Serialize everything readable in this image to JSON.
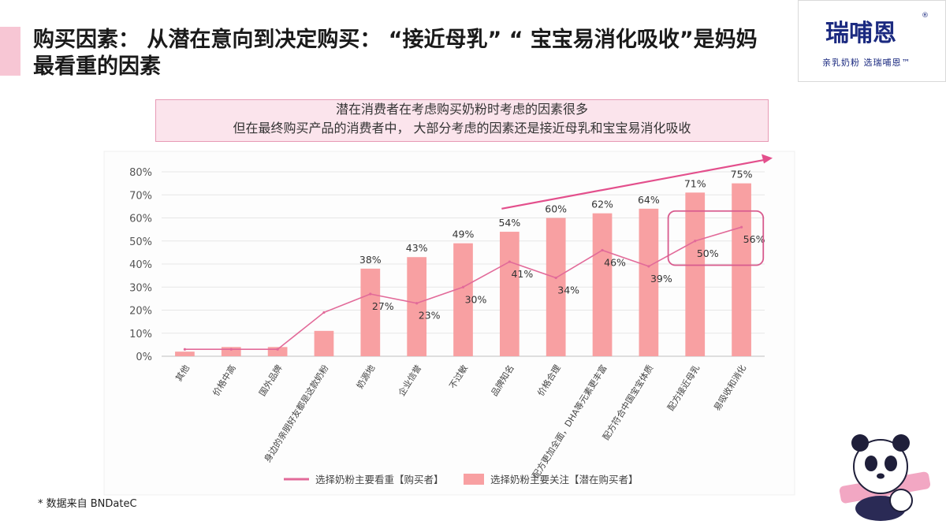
{
  "header": {
    "title": "购买因素： 从潜在意向到决定购买：  “接近母乳”  “ 宝宝易消化吸收”是妈妈最看重的因素"
  },
  "logo": {
    "name": "瑞哺恩",
    "mark": "®",
    "slogan": "亲乳奶粉 选瑞哺恩™",
    "icon": "brand-logo-icon"
  },
  "callout": {
    "line1": "潜在消费者在考虑购买奶粉时考虑的因素很多",
    "line2": "但在最终购买产品的消费者中， 大部分考虑的因素还是接近母乳和宝宝易消化吸收"
  },
  "footnote": {
    "text": "* 数据来自 BNDateC"
  },
  "mascot": {
    "icon": "panda-mascot-icon"
  },
  "colors": {
    "bar": "#f8a0a2",
    "line": "#e26a99",
    "trend": "#e34f8c",
    "highlight": "#d85b8e"
  },
  "chart_data": {
    "type": "bar",
    "categories": [
      "其他",
      "价格中高",
      "国外品牌",
      "身边的亲朋好友都是这款奶粉",
      "奶源地",
      "企业信誉",
      "不过敏",
      "品牌知名",
      "价格合理",
      "配方更加全面，DHA等元素更丰富",
      "配方符合中国宝宝体质",
      "配方接近母乳",
      "易吸收和消化"
    ],
    "ylim": [
      0,
      80
    ],
    "yticks": [
      "0%",
      "10%",
      "20%",
      "30%",
      "40%",
      "50%",
      "60%",
      "70%",
      "80%"
    ],
    "legend_position": "bottom",
    "grid": true,
    "series": [
      {
        "name": "选择奶粉主要看重【购买者】",
        "type": "line",
        "values": [
          3,
          3,
          3,
          19,
          27,
          23,
          30,
          41,
          34,
          46,
          39,
          50,
          56
        ],
        "labels": [
          "",
          "",
          "",
          "",
          "27%",
          "23%",
          "30%",
          "41%",
          "34%",
          "46%",
          "39%",
          "50%",
          "56%"
        ]
      },
      {
        "name": "选择奶粉主要关注【潜在购买者】",
        "type": "bar",
        "values": [
          2,
          4,
          4,
          11,
          38,
          43,
          49,
          54,
          60,
          62,
          64,
          71,
          75
        ],
        "labels": [
          "",
          "",
          "",
          "",
          "38%",
          "43%",
          "49%",
          "54%",
          "60%",
          "62%",
          "64%",
          "71%",
          "75%"
        ]
      }
    ]
  }
}
